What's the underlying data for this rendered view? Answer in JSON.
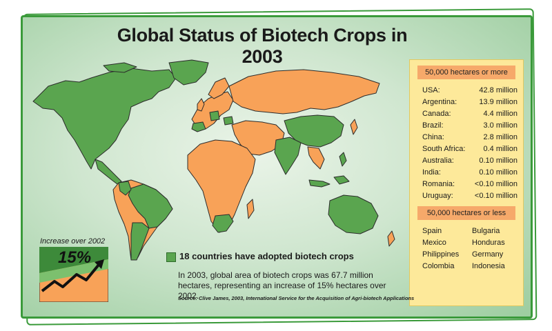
{
  "title": "Global Status of Biotech Crops in 2003",
  "colors": {
    "adopting": "#5aa54f",
    "other": "#f8a258",
    "border": "#2b2b2b",
    "frame": "#3a9a3a"
  },
  "panel": {
    "more_header": "50,000 hectares or more",
    "more_rows": [
      {
        "country": "USA:",
        "value": "42.8 million"
      },
      {
        "country": "Argentina:",
        "value": "13.9 million"
      },
      {
        "country": "Canada:",
        "value": "4.4  million"
      },
      {
        "country": "Brazil:",
        "value": "3.0 million"
      },
      {
        "country": "China:",
        "value": "2.8 million"
      },
      {
        "country": "South Africa:",
        "value": "0.4 million"
      },
      {
        "country": "Australia:",
        "value": "0.10 million"
      },
      {
        "country": "India:",
        "value": "0.10 million"
      },
      {
        "country": "Romania:",
        "value": "<0.10 million"
      },
      {
        "country": "Uruguay:",
        "value": "<0.10 million"
      }
    ],
    "less_header": "50,000 hectares or less",
    "less_left": [
      "Spain",
      "Mexico",
      "Philippines",
      "Colombia"
    ],
    "less_right": [
      "Bulgaria",
      "Honduras",
      "Germany",
      "Indonesia"
    ]
  },
  "legend": {
    "text": "18 countries have adopted biotech crops"
  },
  "description": "In 2003, global area of biotech crops was 67.7 million hectares, representing an increase of 15% hectares over 2002.",
  "source": "Source: Clive James, 2003, International Service for the Acquisition of Agri-biotech Applications",
  "increase": {
    "label": "Increase over 2002",
    "value": "15%"
  }
}
